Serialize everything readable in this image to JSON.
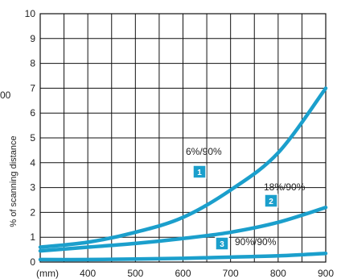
{
  "chart_data": {
    "type": "line",
    "title": "",
    "xlabel": "",
    "x_unit_label": "(mm)",
    "ylabel": "% of scanning distance",
    "side_label": "00",
    "xlim": [
      300,
      900
    ],
    "ylim": [
      0,
      10
    ],
    "x_ticks": [
      400,
      500,
      600,
      700,
      800,
      900
    ],
    "y_ticks": [
      0,
      1,
      2,
      3,
      4,
      5,
      6,
      7,
      8,
      9,
      10
    ],
    "grid": true,
    "line_color": "#1b9fcc",
    "series": [
      {
        "name": "6%/90%",
        "badge": "1",
        "x": [
          300,
          400,
          500,
          600,
          700,
          800,
          900
        ],
        "y": [
          0.6,
          0.8,
          1.2,
          1.8,
          2.9,
          4.4,
          7.0
        ]
      },
      {
        "name": "18%/90%",
        "badge": "2",
        "x": [
          300,
          400,
          500,
          600,
          700,
          800,
          900
        ],
        "y": [
          0.45,
          0.6,
          0.75,
          0.95,
          1.2,
          1.6,
          2.2
        ]
      },
      {
        "name": "90%/90%",
        "badge": "3",
        "x": [
          300,
          400,
          500,
          600,
          700,
          800,
          900
        ],
        "y": [
          0.1,
          0.1,
          0.12,
          0.15,
          0.2,
          0.25,
          0.35
        ]
      }
    ]
  }
}
